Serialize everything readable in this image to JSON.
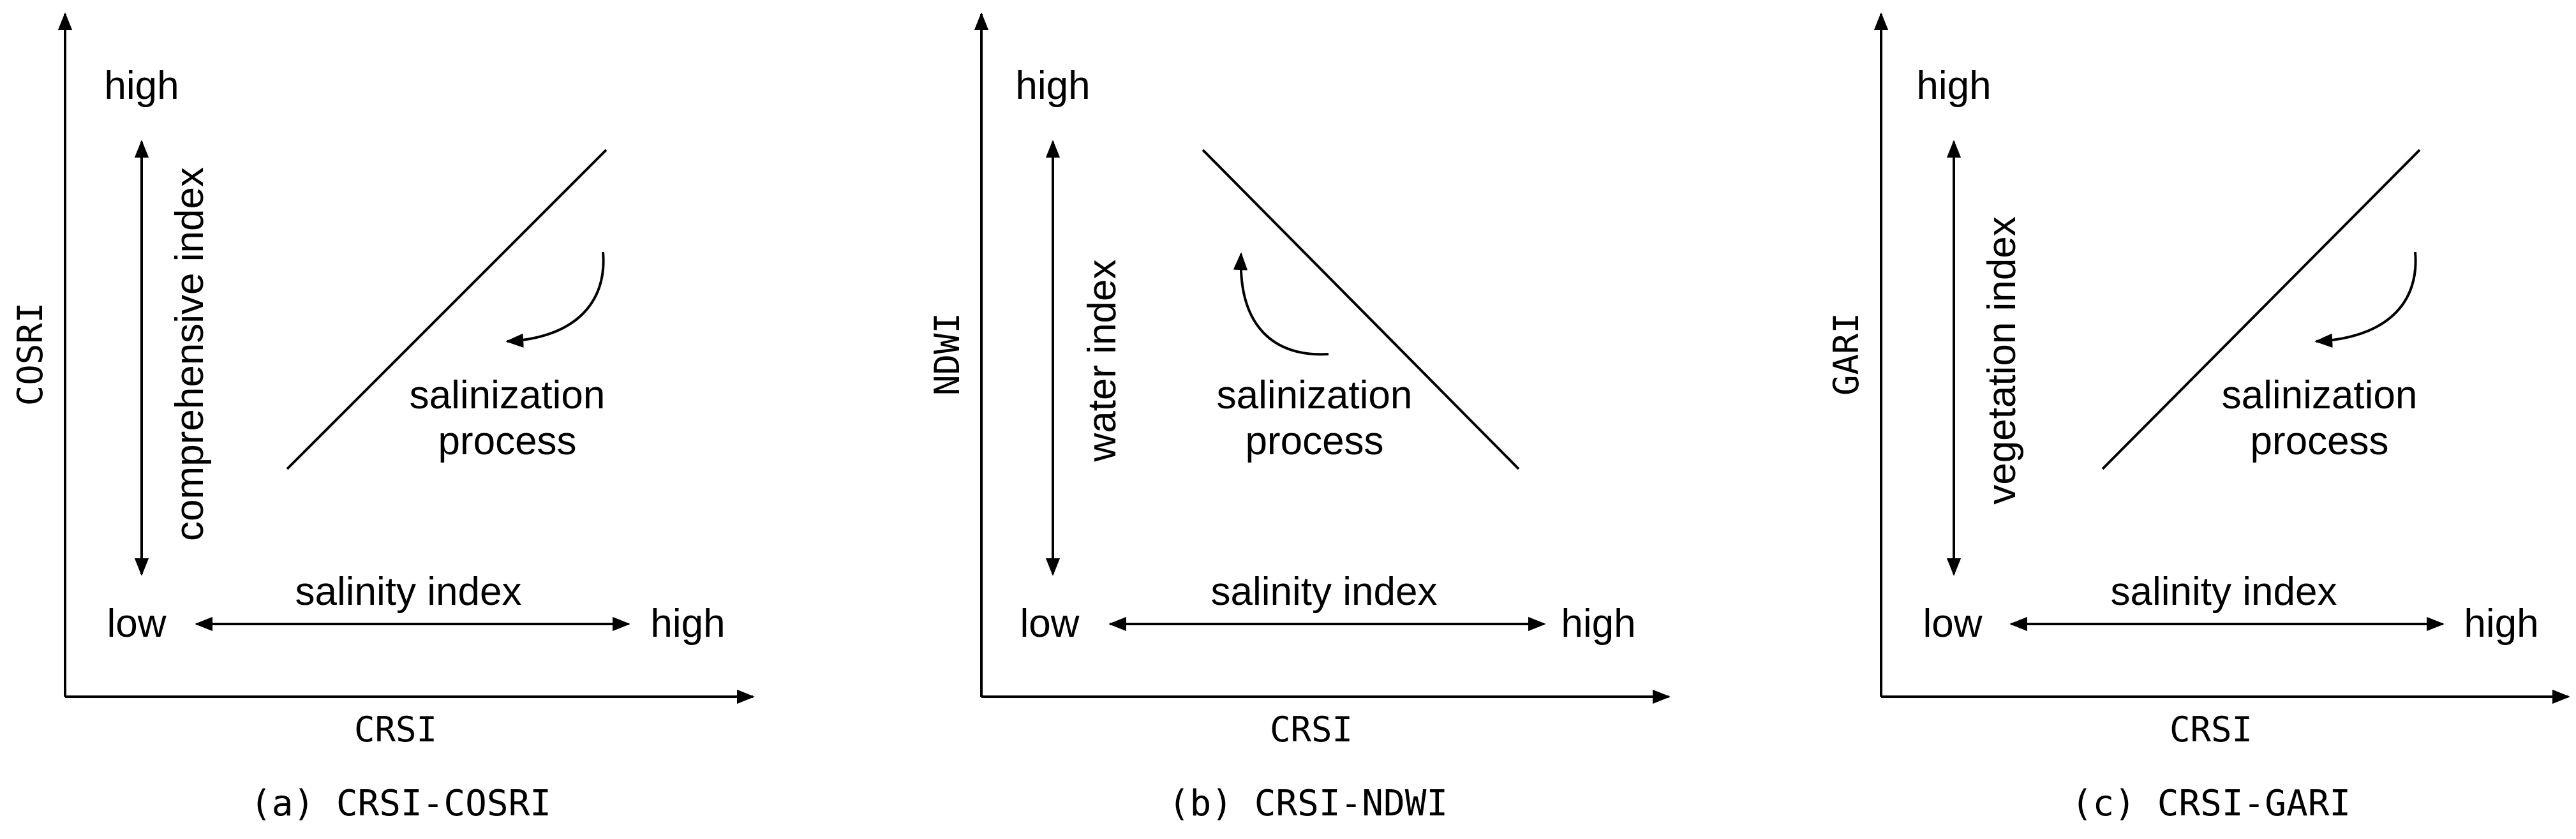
{
  "panels": [
    {
      "caption": "(a) CRSI-COSRI",
      "x_axis_label": "CRSI",
      "y_axis_label": "COSRI",
      "vertical_index_label": "comprehensive index",
      "horizontal_index_label": "salinity index",
      "process_label_line1": "salinization",
      "process_label_line2": "process",
      "high_top": "high",
      "low": "low",
      "high_right": "high",
      "trend": "increasing"
    },
    {
      "caption": "(b) CRSI-NDWI",
      "x_axis_label": "CRSI",
      "y_axis_label": "NDWI",
      "vertical_index_label": "water index",
      "horizontal_index_label": "salinity index",
      "process_label_line1": "salinization",
      "process_label_line2": "process",
      "high_top": "high",
      "low": "low",
      "high_right": "high",
      "trend": "decreasing"
    },
    {
      "caption": "(c) CRSI-GARI",
      "x_axis_label": "CRSI",
      "y_axis_label": "GARI",
      "vertical_index_label": "vegetation index",
      "horizontal_index_label": "salinity index",
      "process_label_line1": "salinization",
      "process_label_line2": "process",
      "high_top": "high",
      "low": "low",
      "high_right": "high",
      "trend": "increasing"
    }
  ]
}
